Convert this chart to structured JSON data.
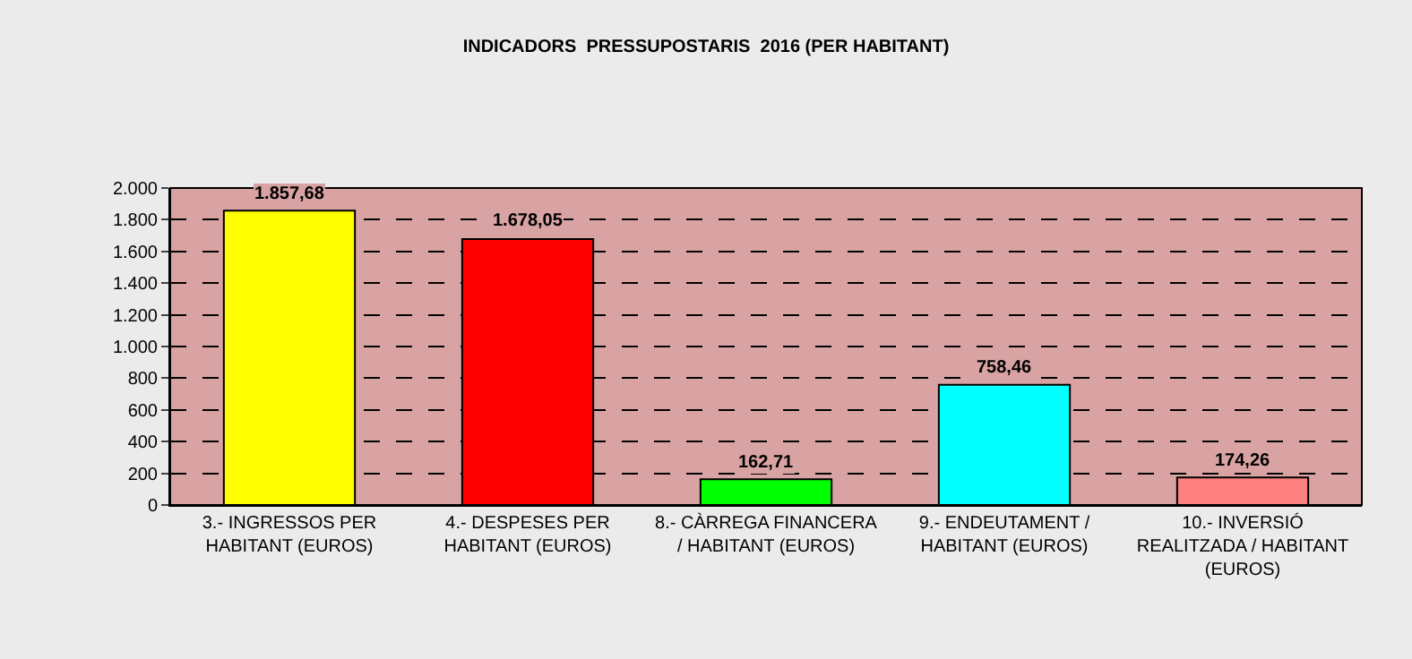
{
  "chart_data": {
    "type": "bar",
    "title": "INDICADORS  PRESSUPOSTARIS  2016 (PER HABITANT)",
    "categories": [
      "3.- INGRESSOS PER\nHABITANT (EUROS)",
      "4.- DESPESES PER\nHABITANT (EUROS)",
      "8.- CÀRREGA FINANCERA\n/ HABITANT (EUROS)",
      "9.- ENDEUTAMENT /\nHABITANT (EUROS)",
      "10.- INVERSIÓ\nREALITZADA / HABITANT\n(EUROS)"
    ],
    "values": [
      1857.68,
      1678.05,
      162.71,
      758.46,
      174.26
    ],
    "colors": [
      "#ffff00",
      "#ff0000",
      "#00ff00",
      "#00ffff",
      "#ff8080"
    ],
    "value_labels": [
      "1.857,68",
      "1.678,05",
      "162,71",
      "758,46",
      "174,26"
    ],
    "ylim": [
      0,
      2000
    ],
    "yticks": [
      {
        "value": 0,
        "label": "0"
      },
      {
        "value": 200,
        "label": "200"
      },
      {
        "value": 400,
        "label": "400"
      },
      {
        "value": 600,
        "label": "600"
      },
      {
        "value": 800,
        "label": "800"
      },
      {
        "value": 1000,
        "label": "1.000"
      },
      {
        "value": 1200,
        "label": "1.200"
      },
      {
        "value": 1400,
        "label": "1.400"
      },
      {
        "value": 1600,
        "label": "1.600"
      },
      {
        "value": 1800,
        "label": "1.800"
      },
      {
        "value": 2000,
        "label": "2.000"
      }
    ],
    "grid": "y",
    "legend": false
  }
}
